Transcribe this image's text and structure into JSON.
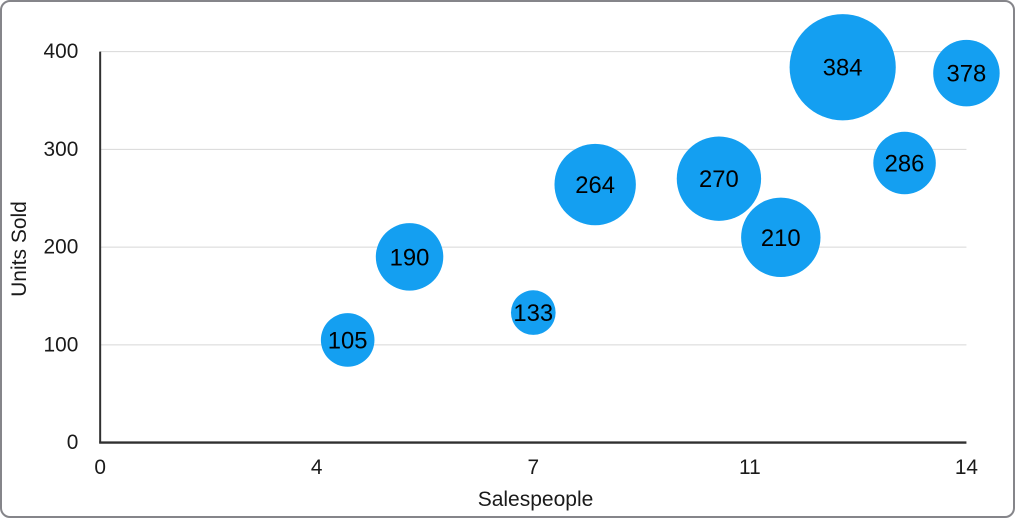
{
  "frame": {
    "background": "#FFFFFF",
    "border_color": "#85858A"
  },
  "chart_data": {
    "type": "scatter",
    "subtype": "bubble",
    "title": "",
    "xlabel": "Salespeople",
    "ylabel": "Units Sold",
    "xlim": [
      0,
      14
    ],
    "ylim": [
      0,
      400
    ],
    "grid": "horizontal",
    "legend": "none",
    "x_ticks": [
      {
        "value": 0,
        "label": "0"
      },
      {
        "value": 3.5,
        "label": "4"
      },
      {
        "value": 7,
        "label": "7"
      },
      {
        "value": 10.5,
        "label": "11"
      },
      {
        "value": 14,
        "label": "14"
      }
    ],
    "y_ticks": [
      {
        "value": 0,
        "label": "0"
      },
      {
        "value": 100,
        "label": "100"
      },
      {
        "value": 200,
        "label": "200"
      },
      {
        "value": 300,
        "label": "300"
      },
      {
        "value": 400,
        "label": "400"
      }
    ],
    "points": [
      {
        "x": 4,
        "y": 105,
        "label": "105",
        "radius_px": 27
      },
      {
        "x": 5,
        "y": 190,
        "label": "190",
        "radius_px": 34
      },
      {
        "x": 7,
        "y": 133,
        "label": "133",
        "radius_px": 22.5
      },
      {
        "x": 8,
        "y": 264,
        "label": "264",
        "radius_px": 41
      },
      {
        "x": 10,
        "y": 270,
        "label": "270",
        "radius_px": 42.5
      },
      {
        "x": 11,
        "y": 210,
        "label": "210",
        "radius_px": 40
      },
      {
        "x": 12,
        "y": 384,
        "label": "384",
        "radius_px": 53.5
      },
      {
        "x": 13,
        "y": 286,
        "label": "286",
        "radius_px": 31.5
      },
      {
        "x": 14,
        "y": 378,
        "label": "378",
        "radius_px": 33.5
      }
    ],
    "colors": {
      "bubble": "#149FF1",
      "bubble_label": "#000000",
      "grid": "#D8D8D8",
      "axis": "#303030",
      "tick_text": "#1A1A1A"
    }
  }
}
